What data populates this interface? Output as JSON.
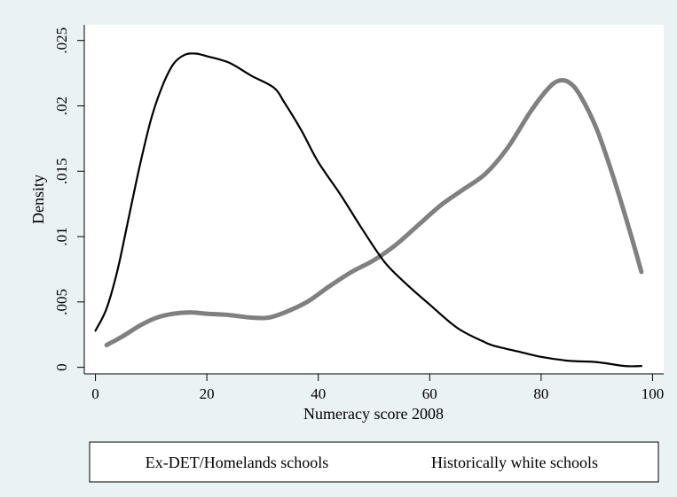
{
  "chart_data": {
    "type": "line",
    "title": "",
    "xlabel": "Numeracy score 2008",
    "ylabel": "Density",
    "xlim": [
      -2,
      102
    ],
    "ylim": [
      -0.0005,
      0.0262
    ],
    "xticks": [
      0,
      20,
      40,
      60,
      80,
      100
    ],
    "xtick_labels": [
      "0",
      "20",
      "40",
      "60",
      "80",
      "100"
    ],
    "yticks": [
      0,
      0.005,
      0.01,
      0.015,
      0.02,
      0.025
    ],
    "ytick_labels": [
      "0",
      ".005",
      ".01",
      ".015",
      ".02",
      ".025"
    ],
    "grid": false,
    "legend_position": "bottom",
    "series": [
      {
        "name": "Ex-DET/Homelands schools",
        "color": "#000000",
        "style": "thin",
        "x": [
          0,
          2,
          4,
          6,
          8,
          10,
          12,
          14,
          16,
          18,
          20,
          24,
          28,
          32,
          34,
          37,
          40,
          44,
          48,
          52,
          56,
          60,
          65,
          70,
          72,
          76,
          80,
          85,
          90,
          95,
          98
        ],
        "y": [
          0.0028,
          0.0045,
          0.0075,
          0.0115,
          0.0155,
          0.019,
          0.0215,
          0.0232,
          0.0239,
          0.024,
          0.0238,
          0.0233,
          0.0223,
          0.0214,
          0.0202,
          0.0181,
          0.0157,
          0.0132,
          0.0105,
          0.008,
          0.0063,
          0.0048,
          0.003,
          0.0019,
          0.0016,
          0.0012,
          0.0008,
          0.0005,
          0.0004,
          0.0001,
          0.0001
        ]
      },
      {
        "name": "Historically white schools",
        "color": "#808080",
        "style": "thick",
        "x": [
          2,
          5,
          8,
          11,
          14,
          17,
          20,
          24,
          28,
          31,
          34,
          38,
          42,
          46,
          50,
          54,
          58,
          62,
          66,
          70,
          74,
          78,
          81,
          83,
          85,
          87,
          90,
          93,
          96,
          98
        ],
        "y": [
          0.0017,
          0.0024,
          0.0032,
          0.0038,
          0.0041,
          0.0042,
          0.0041,
          0.004,
          0.0038,
          0.0038,
          0.0042,
          0.005,
          0.0062,
          0.0073,
          0.0082,
          0.0094,
          0.0109,
          0.0124,
          0.0136,
          0.0148,
          0.0168,
          0.0195,
          0.0212,
          0.0219,
          0.0218,
          0.0208,
          0.0182,
          0.0145,
          0.0103,
          0.0073
        ]
      }
    ]
  }
}
